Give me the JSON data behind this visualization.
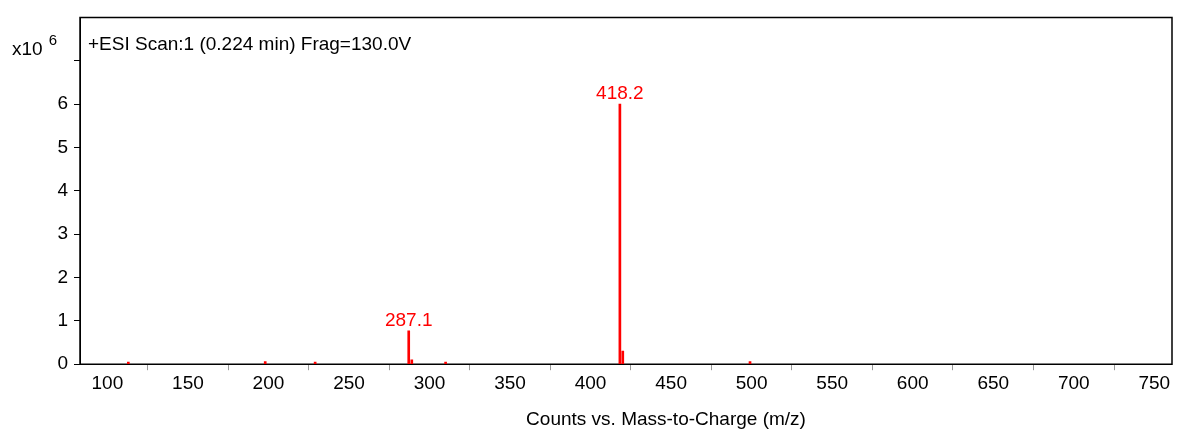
{
  "chart_data": {
    "type": "bar",
    "title": "+ESI Scan:1 (0.224 min) Frag=130.0V",
    "xlabel": "Counts vs. Mass-to-Charge (m/z)",
    "ylabel": "x10$^{6}$",
    "x": [
      113,
      198,
      229,
      287.1,
      289,
      310,
      418.2,
      420,
      499
    ],
    "values": [
      0.05,
      0.06,
      0.05,
      0.77,
      0.1,
      0.05,
      6.0,
      0.3,
      0.06
    ],
    "color": "#ff0000",
    "xlim": [
      83,
      761
    ],
    "xticks": [
      100,
      150,
      200,
      250,
      300,
      350,
      400,
      450,
      500,
      550,
      600,
      650,
      700,
      750
    ],
    "ylim": [
      0,
      8
    ],
    "yticks": [
      0,
      1,
      2,
      3,
      4,
      5,
      6,
      {
        "value": 7,
        "label": null
      }
    ],
    "annotations": [
      {
        "text": "287.1",
        "x": 287.1,
        "y": 0.77
      },
      {
        "text": "418.2",
        "x": 418.2,
        "y": 6.0
      }
    ],
    "grid": false,
    "legend": false
  }
}
